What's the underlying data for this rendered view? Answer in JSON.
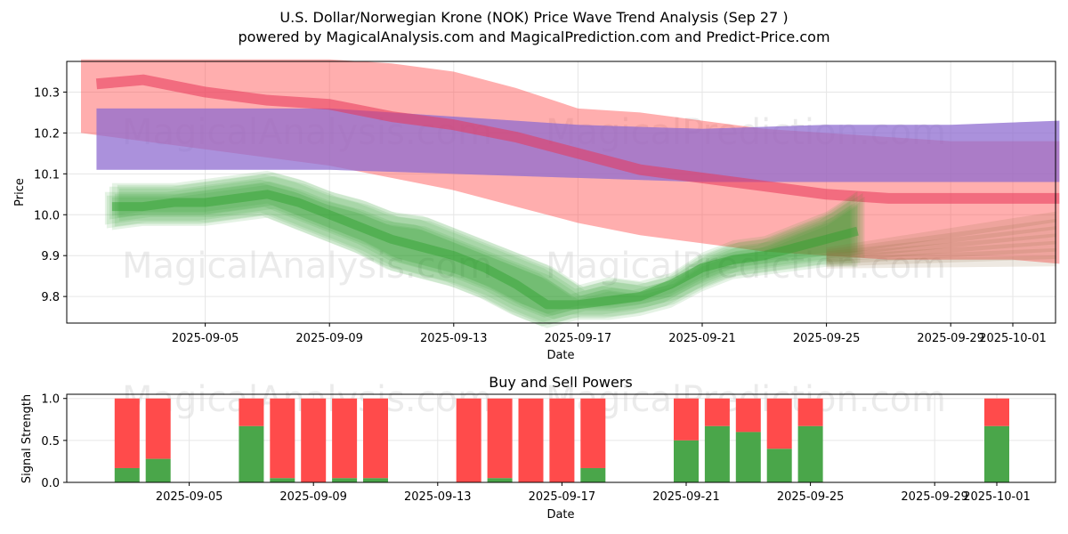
{
  "header": {
    "title": "U.S. Dollar/Norwegian Krone (NOK) Price Wave Trend Analysis (Sep 27 )",
    "subtitle": "powered by MagicalAnalysis.com and MagicalPrediction.com and Predict-Price.com"
  },
  "watermarks": {
    "left": "MagicalAnalysis.com",
    "right": "MagicalPrediction.com"
  },
  "colors": {
    "green": "#2ca02c",
    "red": "#ff4c4c",
    "blue": "#7b7bff",
    "purple": "#a35a9b",
    "buy_bar": "#4aa64a",
    "sell_bar": "#ff4b4b"
  },
  "chart_data": [
    {
      "type": "area",
      "title": "",
      "xlabel": "Date",
      "ylabel": "Price",
      "x_ticks": [
        "2025-09-05",
        "2025-09-09",
        "2025-09-13",
        "2025-09-17",
        "2025-09-21",
        "2025-09-25",
        "2025-09-29",
        "2025-10-01"
      ],
      "y_ticks": [
        "9.8",
        "9.9",
        "10.0",
        "10.1",
        "10.2",
        "10.3"
      ],
      "ylim": [
        9.735,
        10.375
      ],
      "x_range_days": [
        0,
        31.5
      ],
      "series": [
        {
          "name": "green wave band",
          "x": [
            1,
            2,
            3,
            4,
            5,
            6,
            7,
            8,
            9,
            10,
            11,
            12,
            13,
            14,
            15,
            16,
            17,
            18,
            19,
            20,
            21,
            22,
            23,
            24,
            25
          ],
          "upper": [
            10.06,
            10.06,
            10.06,
            10.07,
            10.08,
            10.09,
            10.07,
            10.04,
            10.02,
            9.99,
            9.98,
            9.95,
            9.92,
            9.89,
            9.86,
            9.81,
            9.83,
            9.82,
            9.84,
            9.89,
            9.92,
            9.93,
            9.96,
            9.99,
            10.04
          ],
          "lower": [
            9.98,
            9.99,
            9.99,
            9.99,
            10.0,
            10.01,
            9.98,
            9.95,
            9.92,
            9.88,
            9.86,
            9.84,
            9.81,
            9.77,
            9.74,
            9.76,
            9.76,
            9.77,
            9.79,
            9.83,
            9.86,
            9.87,
            9.88,
            9.89,
            9.89
          ],
          "mid": [
            10.02,
            10.02,
            10.03,
            10.03,
            10.04,
            10.05,
            10.03,
            10.0,
            9.97,
            9.94,
            9.92,
            9.9,
            9.87,
            9.83,
            9.78,
            9.78,
            9.79,
            9.8,
            9.83,
            9.87,
            9.89,
            9.9,
            9.92,
            9.94,
            9.96
          ]
        },
        {
          "name": "red wave band",
          "x": [
            0,
            2,
            4,
            6,
            8,
            10,
            12,
            14,
            16,
            18,
            20,
            22,
            24,
            26,
            28,
            30,
            31.5
          ],
          "upper": [
            10.38,
            10.38,
            10.38,
            10.38,
            10.38,
            10.37,
            10.35,
            10.31,
            10.26,
            10.25,
            10.23,
            10.21,
            10.2,
            10.19,
            10.18,
            10.18,
            10.18
          ],
          "lower": [
            10.2,
            10.18,
            10.16,
            10.14,
            10.12,
            10.09,
            10.06,
            10.02,
            9.98,
            9.95,
            9.93,
            9.91,
            9.9,
            9.89,
            9.89,
            9.89,
            9.88
          ]
        },
        {
          "name": "blue wave band",
          "x": [
            0.5,
            4,
            8,
            12,
            16,
            20,
            24,
            28,
            31.5
          ],
          "upper": [
            10.26,
            10.26,
            10.26,
            10.24,
            10.22,
            10.21,
            10.22,
            10.22,
            10.23
          ],
          "lower": [
            10.11,
            10.11,
            10.11,
            10.1,
            10.09,
            10.08,
            10.08,
            10.08,
            10.08
          ]
        },
        {
          "name": "red trend line",
          "x": [
            0.5,
            2,
            4,
            6,
            8,
            10,
            12,
            14,
            16,
            18,
            20,
            22,
            24,
            26,
            28,
            31.5
          ],
          "values": [
            10.32,
            10.33,
            10.3,
            10.28,
            10.27,
            10.24,
            10.22,
            10.19,
            10.15,
            10.11,
            10.09,
            10.07,
            10.05,
            10.04,
            10.04,
            10.04
          ]
        }
      ]
    },
    {
      "type": "bar",
      "title": "Buy and Sell Powers",
      "xlabel": "Date",
      "ylabel": "Signal Strength",
      "ylim": [
        0,
        1.05
      ],
      "y_ticks": [
        "0.0",
        "0.5",
        "1.0"
      ],
      "x_ticks": [
        "2025-09-05",
        "2025-09-09",
        "2025-09-13",
        "2025-09-17",
        "2025-09-21",
        "2025-09-25",
        "2025-09-29",
        "2025-10-01"
      ],
      "bars": [
        {
          "x": 2,
          "buy": 0.17,
          "sell": 0.83
        },
        {
          "x": 3,
          "buy": 0.28,
          "sell": 0.72
        },
        {
          "x": 6,
          "buy": 0.67,
          "sell": 0.33
        },
        {
          "x": 7,
          "buy": 0.05,
          "sell": 0.95
        },
        {
          "x": 8,
          "buy": 0.0,
          "sell": 1.0
        },
        {
          "x": 9,
          "buy": 0.05,
          "sell": 0.95
        },
        {
          "x": 10,
          "buy": 0.05,
          "sell": 0.95
        },
        {
          "x": 13,
          "buy": 0.0,
          "sell": 1.0
        },
        {
          "x": 14,
          "buy": 0.05,
          "sell": 0.95
        },
        {
          "x": 15,
          "buy": 0.0,
          "sell": 1.0
        },
        {
          "x": 16,
          "buy": 0.0,
          "sell": 1.0
        },
        {
          "x": 17,
          "buy": 0.17,
          "sell": 0.83
        },
        {
          "x": 20,
          "buy": 0.5,
          "sell": 0.5
        },
        {
          "x": 21,
          "buy": 0.67,
          "sell": 0.33
        },
        {
          "x": 22,
          "buy": 0.6,
          "sell": 0.4
        },
        {
          "x": 23,
          "buy": 0.4,
          "sell": 0.6
        },
        {
          "x": 24,
          "buy": 0.67,
          "sell": 0.33
        },
        {
          "x": 30,
          "buy": 0.67,
          "sell": 0.33
        }
      ]
    }
  ]
}
